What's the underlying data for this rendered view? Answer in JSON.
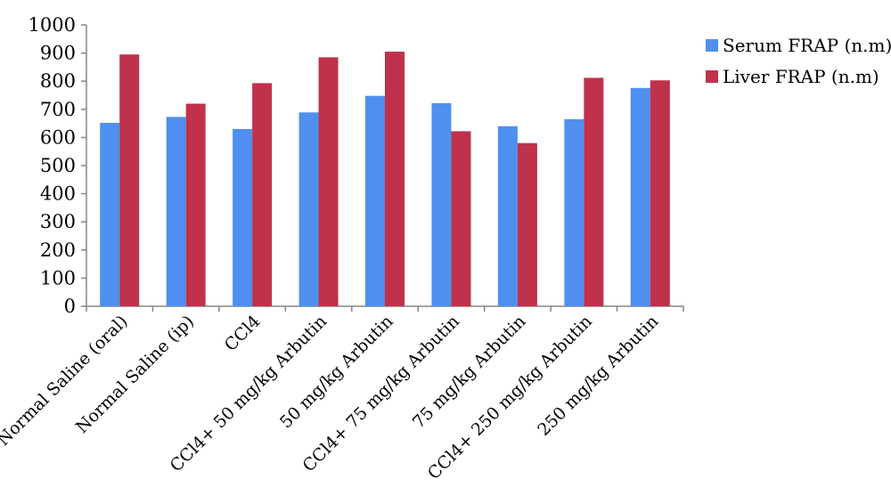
{
  "chart_data": {
    "type": "bar",
    "title": "",
    "xlabel": "",
    "ylabel": "",
    "ylim": [
      0,
      1000
    ],
    "y_ticks": [
      "0",
      "100",
      "200",
      "300",
      "400",
      "500",
      "600",
      "700",
      "800",
      "900",
      "1000"
    ],
    "grid": false,
    "legend_position": "right",
    "categories": [
      "Normal Saline (oral)",
      "Normal Saline (ip)",
      "CCl4",
      "CCl4+ 50 mg/kg Arbutin",
      "50 mg/kg Arbutin",
      "CCl4+ 75 mg/kg Arbutin",
      "75 mg/kg Arbutin",
      "CCl4+ 250 mg/kg Arbutin",
      "250 mg/kg Arbutin"
    ],
    "series": [
      {
        "name": "Serum FRAP (n.m)",
        "color": "#4F8FF0",
        "values": [
          652,
          673,
          630,
          689,
          748,
          722,
          640,
          665,
          776
        ]
      },
      {
        "name": "Liver FRAP (n.m)",
        "color": "#C0314B",
        "values": [
          895,
          720,
          793,
          885,
          905,
          622,
          580,
          812,
          803
        ]
      }
    ]
  }
}
